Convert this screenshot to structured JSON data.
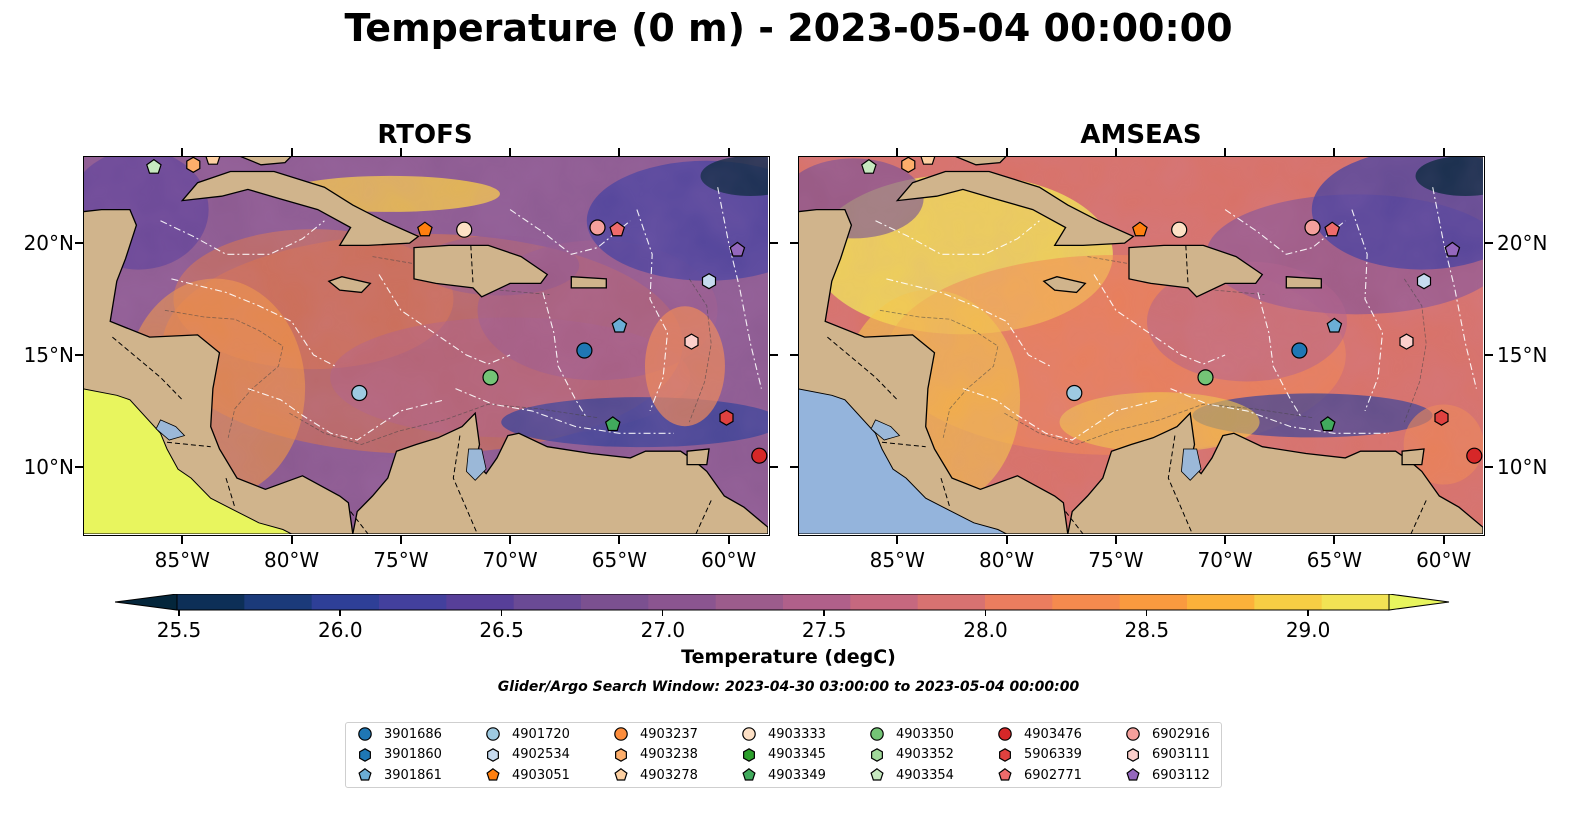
{
  "title": "Temperature (0 m) - 2023-05-04 00:00:00",
  "panels": [
    {
      "title": "RTOFS"
    },
    {
      "title": "AMSEAS"
    }
  ],
  "lon_ticks": [
    "85°W",
    "80°W",
    "75°W",
    "70°W",
    "65°W",
    "60°W"
  ],
  "lat_ticks": [
    "20°N",
    "15°N",
    "10°N"
  ],
  "colorbar": {
    "label": "Temperature (degC)",
    "ticks": [
      "25.5",
      "26.0",
      "26.5",
      "27.0",
      "27.5",
      "28.0",
      "28.5",
      "29.0"
    ],
    "colors": [
      "#04263b",
      "#0d2f57",
      "#1b3a7a",
      "#2e3f97",
      "#43409d",
      "#573f99",
      "#6a4a95",
      "#7b5090",
      "#8b5590",
      "#9c5c8c",
      "#b0608a",
      "#c6687f",
      "#d87271",
      "#eb7d5f",
      "#f58a4e",
      "#fa9a3f",
      "#fcb13a",
      "#f7cd44",
      "#f2e354",
      "#e8f55e"
    ]
  },
  "search_window": "Glider/Argo Search Window: 2023-04-30 03:00:00 to 2023-05-04 00:00:00",
  "legend": [
    {
      "id": "3901686",
      "marker": "circle",
      "color": "#1f77b4"
    },
    {
      "id": "3901860",
      "marker": "hexagon",
      "color": "#1f77b4"
    },
    {
      "id": "3901861",
      "marker": "pentagon",
      "color": "#6baed6"
    },
    {
      "id": "4901720",
      "marker": "circle",
      "color": "#9ecae1"
    },
    {
      "id": "4902534",
      "marker": "hexagon",
      "color": "#c6dbef"
    },
    {
      "id": "4903051",
      "marker": "pentagon",
      "color": "#ff7f0e"
    },
    {
      "id": "4903237",
      "marker": "circle",
      "color": "#fd8d3c"
    },
    {
      "id": "4903238",
      "marker": "hexagon",
      "color": "#fdae6b"
    },
    {
      "id": "4903278",
      "marker": "pentagon",
      "color": "#fdd0a2"
    },
    {
      "id": "4903333",
      "marker": "circle",
      "color": "#fde0c5"
    },
    {
      "id": "4903345",
      "marker": "hexagon",
      "color": "#2ca02c"
    },
    {
      "id": "4903349",
      "marker": "pentagon",
      "color": "#41ab5d"
    },
    {
      "id": "4903350",
      "marker": "circle",
      "color": "#74c476"
    },
    {
      "id": "4903352",
      "marker": "hexagon",
      "color": "#a1d99b"
    },
    {
      "id": "4903354",
      "marker": "pentagon",
      "color": "#c7e9c0"
    },
    {
      "id": "4903476",
      "marker": "circle",
      "color": "#d62728"
    },
    {
      "id": "5906339",
      "marker": "hexagon",
      "color": "#e0413f"
    },
    {
      "id": "6902771",
      "marker": "pentagon",
      "color": "#ef6b6b"
    },
    {
      "id": "6902916",
      "marker": "circle",
      "color": "#f4a09c"
    },
    {
      "id": "6903111",
      "marker": "hexagon",
      "color": "#fcd0cc"
    },
    {
      "id": "6903112",
      "marker": "pentagon",
      "color": "#9467bd"
    }
  ],
  "observations": [
    {
      "id": "3901686",
      "lon": -66.6,
      "lat": 15.2
    },
    {
      "id": "3901861",
      "lon": -65.0,
      "lat": 16.3
    },
    {
      "id": "4901720",
      "lon": -76.9,
      "lat": 13.3
    },
    {
      "id": "4902534",
      "lon": -60.9,
      "lat": 18.3
    },
    {
      "id": "4903051",
      "lon": -73.9,
      "lat": 20.6
    },
    {
      "id": "4903238",
      "lon": -84.5,
      "lat": 23.5
    },
    {
      "id": "4903278",
      "lon": -83.6,
      "lat": 23.8
    },
    {
      "id": "4903333",
      "lon": -72.1,
      "lat": 20.6
    },
    {
      "id": "4903349",
      "lon": -65.3,
      "lat": 11.9
    },
    {
      "id": "4903350",
      "lon": -70.9,
      "lat": 14.0
    },
    {
      "id": "4903354",
      "lon": -86.3,
      "lat": 23.4
    },
    {
      "id": "4903476",
      "lon": -58.6,
      "lat": 10.5
    },
    {
      "id": "5906339",
      "lon": -60.1,
      "lat": 12.2
    },
    {
      "id": "6902771",
      "lon": -65.1,
      "lat": 20.6
    },
    {
      "id": "6902916",
      "lon": -66.0,
      "lat": 20.7
    },
    {
      "id": "6903111",
      "lon": -61.7,
      "lat": 15.6
    },
    {
      "id": "6903112",
      "lon": -59.6,
      "lat": 19.7
    }
  ]
}
